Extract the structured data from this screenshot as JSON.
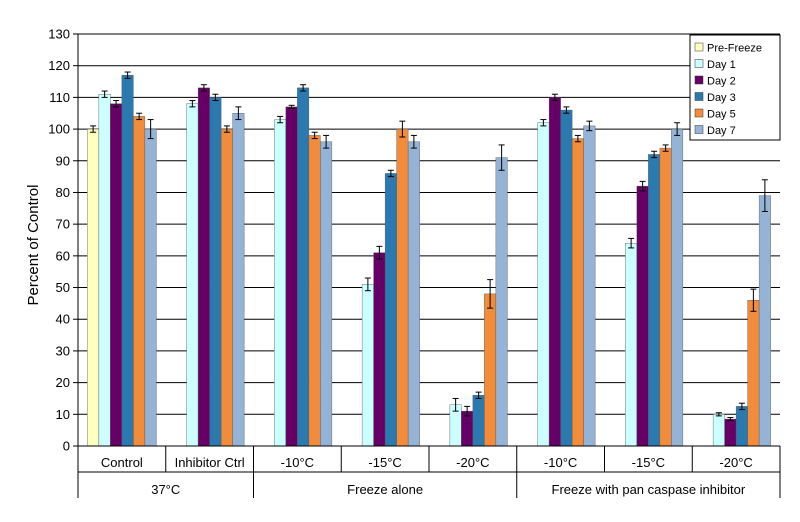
{
  "chart_data": {
    "type": "bar",
    "ylabel": "Percent of Control",
    "ylim": [
      0,
      130
    ],
    "yticks": [
      0,
      10,
      20,
      30,
      40,
      50,
      60,
      70,
      80,
      90,
      100,
      110,
      120,
      130
    ],
    "grid": true,
    "legend_position": "top-right",
    "categories": [
      "Control",
      "Inhibitor Ctrl",
      "-10°C",
      "-15°C",
      "-20°C",
      "-10°C",
      "-15°C",
      "-20°C"
    ],
    "groups": [
      {
        "label": "37°C",
        "categories": [
          0,
          1
        ]
      },
      {
        "label": "Freeze alone",
        "categories": [
          2,
          3,
          4
        ]
      },
      {
        "label": "Freeze with pan caspase inhibitor",
        "categories": [
          5,
          6,
          7
        ]
      }
    ],
    "series": [
      {
        "name": "Pre-Freeze",
        "color": "#ffffc0",
        "values": [
          100,
          null,
          null,
          null,
          null,
          null,
          null,
          null
        ],
        "errors": [
          1,
          null,
          null,
          null,
          null,
          null,
          null,
          null
        ]
      },
      {
        "name": "Day 1",
        "color": "#ccffff",
        "values": [
          111,
          108,
          103,
          51,
          13,
          102,
          64,
          10
        ],
        "errors": [
          1,
          1,
          1,
          2,
          2,
          1,
          1.5,
          0.5
        ]
      },
      {
        "name": "Day 2",
        "color": "#660066",
        "values": [
          108,
          113,
          107,
          61,
          11,
          110,
          82,
          8.5
        ],
        "errors": [
          1,
          1,
          0.5,
          2,
          1.5,
          1,
          1.5,
          0.5
        ]
      },
      {
        "name": "Day 3",
        "color": "#2a7ab0",
        "values": [
          117,
          110,
          113,
          86,
          16,
          106,
          92,
          12.5
        ],
        "errors": [
          1,
          1,
          1,
          1,
          1,
          1,
          1,
          1
        ]
      },
      {
        "name": "Day 5",
        "color": "#f28c3a",
        "values": [
          104,
          100,
          98,
          100,
          48,
          97,
          94,
          46
        ],
        "errors": [
          1,
          1,
          1,
          2.5,
          4.5,
          1,
          1,
          3.5
        ]
      },
      {
        "name": "Day 7",
        "color": "#95b3d7",
        "values": [
          100,
          105,
          96,
          96,
          91,
          101,
          100,
          79
        ],
        "errors": [
          3,
          2,
          2,
          2,
          4,
          1.5,
          2,
          5
        ]
      }
    ]
  }
}
